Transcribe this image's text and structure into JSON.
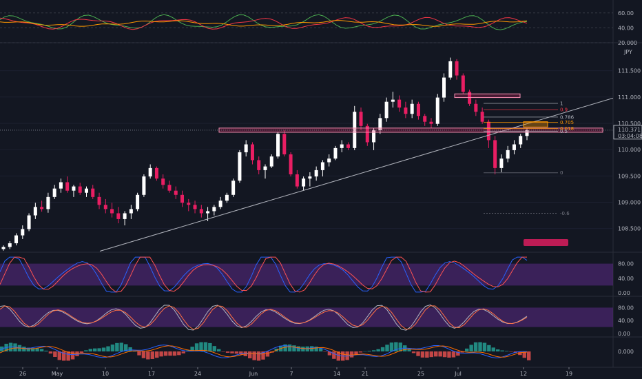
{
  "chart_data": {
    "type": "candlestick",
    "currency": "JPY",
    "price_axis": {
      "ticks": [
        "111.500",
        "111.000",
        "110.500",
        "110.000",
        "109.500",
        "109.000",
        "108.500"
      ],
      "ylim": [
        108.05,
        111.98
      ]
    },
    "time_axis": {
      "ticks": [
        "26",
        "May",
        "10",
        "17",
        "24",
        "Jun",
        "7",
        "14",
        "21",
        "25",
        "Jul",
        "12",
        "19"
      ]
    },
    "current_price": {
      "value": "110.371",
      "countdown": "03:04:08",
      "color": "#ffffff"
    },
    "fib_levels": [
      {
        "label": "1",
        "value": 110.88,
        "color": "#b2b5be"
      },
      {
        "label": "0.9",
        "value": 110.76,
        "color": "#f23645"
      },
      {
        "label": "0.786",
        "value": 110.62,
        "color": "#b2b5be"
      },
      {
        "label": "0.705",
        "value": 110.52,
        "color": "#ff9800"
      },
      {
        "label": "0.618",
        "value": 110.4,
        "color": "#ff9800"
      },
      {
        "label": "0.5",
        "value": 110.35,
        "color": "#b2b5be"
      },
      {
        "label": "0",
        "value": 109.56,
        "color": "#787b86"
      },
      {
        "label": "-0.6",
        "value": 108.79,
        "color": "#787b86"
      }
    ],
    "candles_ohlc": [
      [
        108.11,
        108.18,
        108.08,
        108.15
      ],
      [
        108.15,
        108.26,
        108.11,
        108.22
      ],
      [
        108.22,
        108.41,
        108.18,
        108.37
      ],
      [
        108.37,
        108.56,
        108.3,
        108.49
      ],
      [
        108.49,
        108.79,
        108.45,
        108.75
      ],
      [
        108.75,
        108.99,
        108.68,
        108.91
      ],
      [
        108.91,
        109.03,
        108.82,
        108.87
      ],
      [
        108.87,
        109.18,
        108.8,
        109.1
      ],
      [
        109.1,
        109.33,
        109.06,
        109.26
      ],
      [
        109.26,
        109.45,
        109.18,
        109.38
      ],
      [
        109.38,
        109.49,
        109.18,
        109.22
      ],
      [
        109.22,
        109.33,
        109.1,
        109.3
      ],
      [
        109.3,
        109.37,
        109.14,
        109.18
      ],
      [
        109.18,
        109.3,
        109.1,
        109.26
      ],
      [
        109.26,
        109.33,
        109.06,
        109.1
      ],
      [
        109.1,
        109.18,
        108.87,
        108.95
      ],
      [
        108.95,
        109.06,
        108.79,
        108.87
      ],
      [
        108.87,
        108.99,
        108.71,
        108.79
      ],
      [
        108.79,
        108.91,
        108.6,
        108.68
      ],
      [
        108.68,
        108.83,
        108.56,
        108.79
      ],
      [
        108.79,
        108.95,
        108.68,
        108.87
      ],
      [
        108.87,
        109.18,
        108.83,
        109.14
      ],
      [
        109.14,
        109.53,
        109.1,
        109.49
      ],
      [
        109.49,
        109.72,
        109.45,
        109.65
      ],
      [
        109.65,
        109.68,
        109.41,
        109.45
      ],
      [
        109.45,
        109.53,
        109.26,
        109.33
      ],
      [
        109.33,
        109.41,
        109.18,
        109.22
      ],
      [
        109.22,
        109.3,
        109.06,
        109.14
      ],
      [
        109.14,
        109.22,
        108.91,
        108.99
      ],
      [
        108.99,
        109.06,
        108.83,
        108.95
      ],
      [
        108.95,
        109.03,
        108.79,
        108.87
      ],
      [
        108.87,
        108.95,
        108.71,
        108.79
      ],
      [
        108.79,
        108.91,
        108.64,
        108.83
      ],
      [
        108.83,
        108.95,
        108.75,
        108.91
      ],
      [
        108.91,
        109.1,
        108.87,
        109.03
      ],
      [
        109.03,
        109.18,
        108.99,
        109.14
      ],
      [
        109.14,
        109.45,
        109.1,
        109.41
      ],
      [
        109.41,
        109.99,
        109.37,
        109.95
      ],
      [
        109.95,
        110.18,
        109.87,
        110.1
      ],
      [
        110.1,
        110.14,
        109.72,
        109.8
      ],
      [
        109.8,
        109.87,
        109.53,
        109.61
      ],
      [
        109.61,
        109.72,
        109.45,
        109.68
      ],
      [
        109.68,
        109.91,
        109.65,
        109.87
      ],
      [
        109.87,
        110.34,
        109.83,
        110.3
      ],
      [
        110.3,
        110.37,
        109.87,
        109.91
      ],
      [
        109.91,
        109.95,
        109.49,
        109.53
      ],
      [
        109.53,
        109.61,
        109.26,
        109.3
      ],
      [
        109.3,
        109.49,
        109.22,
        109.45
      ],
      [
        109.45,
        109.57,
        109.3,
        109.49
      ],
      [
        109.49,
        109.68,
        109.41,
        109.61
      ],
      [
        109.61,
        109.8,
        109.49,
        109.76
      ],
      [
        109.76,
        109.91,
        109.68,
        109.83
      ],
      [
        109.83,
        110.07,
        109.8,
        110.03
      ],
      [
        110.03,
        110.18,
        109.95,
        110.1
      ],
      [
        110.1,
        110.14,
        109.99,
        110.03
      ],
      [
        110.03,
        110.83,
        109.99,
        110.72
      ],
      [
        110.72,
        110.8,
        110.37,
        110.45
      ],
      [
        110.45,
        110.49,
        110.07,
        110.14
      ],
      [
        110.14,
        110.41,
        109.99,
        110.37
      ],
      [
        110.37,
        110.68,
        110.3,
        110.6
      ],
      [
        110.6,
        110.99,
        110.53,
        110.91
      ],
      [
        110.91,
        111.1,
        110.8,
        110.95
      ],
      [
        110.95,
        111.03,
        110.72,
        110.8
      ],
      [
        110.8,
        110.91,
        110.6,
        110.68
      ],
      [
        110.68,
        110.95,
        110.6,
        110.87
      ],
      [
        110.87,
        110.91,
        110.57,
        110.64
      ],
      [
        110.64,
        110.68,
        110.45,
        110.53
      ],
      [
        110.53,
        110.6,
        110.41,
        110.49
      ],
      [
        110.49,
        111.06,
        110.45,
        110.99
      ],
      [
        110.99,
        111.45,
        110.91,
        111.37
      ],
      [
        111.37,
        111.75,
        111.33,
        111.68
      ],
      [
        111.68,
        111.72,
        111.33,
        111.41
      ],
      [
        111.41,
        111.45,
        111.06,
        111.1
      ],
      [
        111.1,
        111.14,
        110.83,
        110.87
      ],
      [
        110.87,
        110.95,
        110.64,
        110.72
      ],
      [
        110.72,
        110.8,
        110.49,
        110.53
      ],
      [
        110.53,
        110.57,
        110.03,
        110.18
      ],
      [
        110.18,
        110.26,
        109.53,
        109.65
      ],
      [
        109.65,
        109.91,
        109.57,
        109.83
      ],
      [
        109.83,
        110.07,
        109.76,
        109.99
      ],
      [
        109.99,
        110.18,
        109.91,
        110.1
      ],
      [
        110.1,
        110.3,
        110.03,
        110.26
      ],
      [
        110.26,
        110.41,
        110.18,
        110.37
      ]
    ]
  },
  "indicators": {
    "top_panel": {
      "ticks": [
        "60.00",
        "40.00",
        "20.000"
      ]
    },
    "stoch_panel_1": {
      "ticks": [
        "80.00",
        "40.00",
        "0.00"
      ]
    },
    "stoch_panel_2": {
      "ticks": [
        "80.00",
        "40.00",
        "0.00"
      ]
    },
    "macd_panel": {
      "ticks": [
        "0.000"
      ]
    }
  },
  "colors": {
    "background": "#131722",
    "bull": "#ffffff",
    "bear": "#e91e63",
    "band_fill": "#5b2a86",
    "stoch_k": "#2962ff",
    "stoch_d": "#ff5252",
    "grid": "#2a2e39"
  }
}
